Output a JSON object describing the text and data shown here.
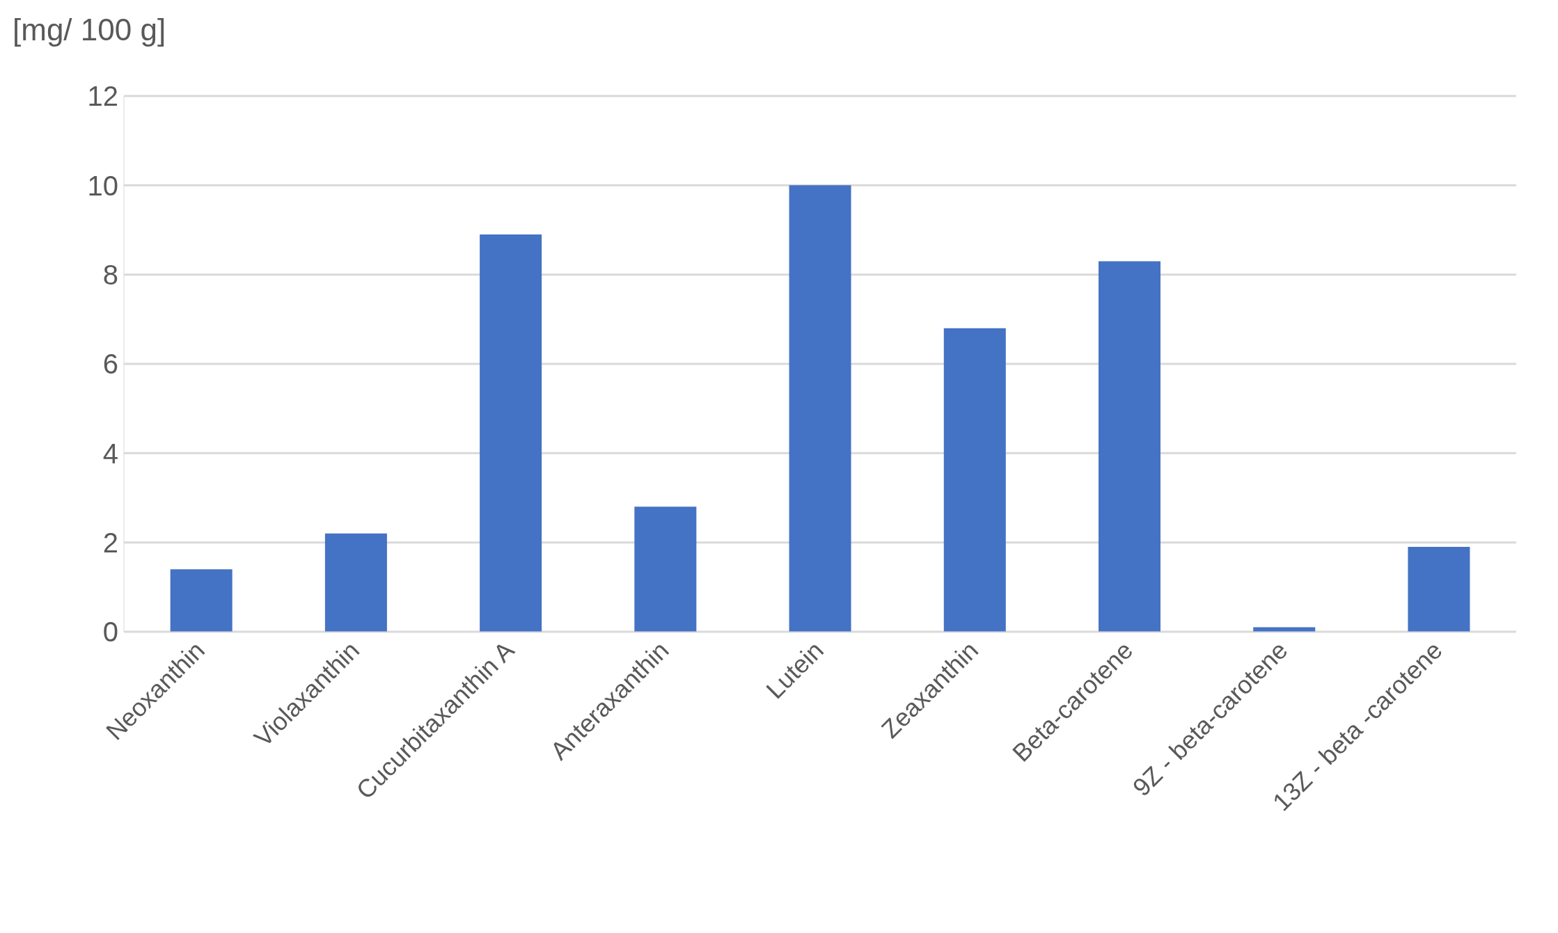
{
  "chart_data": {
    "type": "bar",
    "ylabel": "[mg/ 100 g]",
    "categories": [
      "Neoxanthin",
      "Violaxanthin",
      "Cucurbitaxanthin A",
      "Anteraxanthin",
      "Lutein",
      "Zeaxanthin",
      "Beta-carotene",
      "9Z - beta-carotene",
      "13Z - beta -carotene"
    ],
    "values": [
      1.4,
      2.2,
      8.9,
      2.8,
      10,
      6.8,
      8.3,
      0.1,
      1.9
    ],
    "color": "#4472c4",
    "ylim": [
      0,
      12
    ],
    "yticks": [
      0,
      2,
      4,
      6,
      8,
      10,
      12
    ],
    "grid": "y"
  }
}
